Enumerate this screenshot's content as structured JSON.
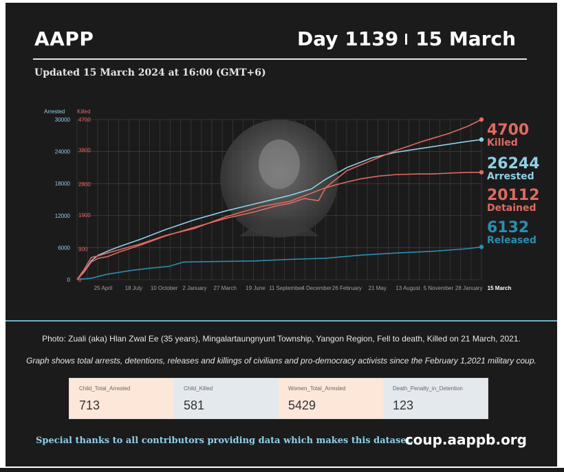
{
  "header": {
    "brand": "AAPP",
    "day": "Day 1139",
    "date": "15 March",
    "updated": "Updated 15 March 2024 at 16:00 (GMT+6)"
  },
  "colors": {
    "background": "#1c1b1c",
    "arrested": "#8fd1e6",
    "killed": "#e06a62",
    "detained": "#e06a62",
    "released": "#2b8fb0",
    "grid": "#4a4a4a"
  },
  "chart_data": {
    "type": "line",
    "title": "",
    "xlabel": "",
    "ylabel": "",
    "axis_left": {
      "label": "Arrested",
      "ticks": [
        0,
        6000,
        12000,
        18000,
        24000,
        30000
      ],
      "ylim": [
        0,
        30000
      ]
    },
    "axis_right": {
      "label": "Killed",
      "ticks": [
        0,
        900,
        1900,
        2800,
        3800,
        4700
      ],
      "ylim": [
        0,
        4700
      ]
    },
    "x_ticks": [
      "25 April",
      "18 July",
      "10 October",
      "2 January",
      "27 March",
      "19 June",
      "11 September",
      "4 December",
      "26 February",
      "21 May",
      "13 August",
      "5 November",
      "28 January",
      "15 March"
    ],
    "x_range": [
      0,
      1139
    ],
    "grid": true,
    "series": [
      {
        "name": "Arrested",
        "axis": "left",
        "x": [
          0,
          20,
          40,
          60,
          85,
          120,
          180,
          250,
          330,
          420,
          520,
          600,
          660,
          700,
          760,
          830,
          900,
          970,
          1050,
          1100,
          1139
        ],
        "values": [
          0,
          1500,
          3500,
          4600,
          5300,
          6200,
          7600,
          9400,
          11200,
          12900,
          14500,
          15800,
          17000,
          18800,
          21000,
          22800,
          23900,
          24600,
          25400,
          25900,
          26244
        ]
      },
      {
        "name": "Killed",
        "axis": "right",
        "x": [
          0,
          20,
          40,
          60,
          85,
          120,
          180,
          250,
          330,
          420,
          520,
          600,
          650,
          700,
          760,
          830,
          900,
          970,
          1050,
          1100,
          1139
        ],
        "values": [
          0,
          300,
          650,
          700,
          780,
          880,
          1050,
          1300,
          1500,
          1850,
          2150,
          2300,
          2500,
          2700,
          3200,
          3500,
          3800,
          4050,
          4300,
          4500,
          4700
        ]
      },
      {
        "name": "Detained",
        "axis": "left",
        "x": [
          0,
          20,
          40,
          60,
          85,
          120,
          180,
          250,
          330,
          420,
          500,
          560,
          600,
          640,
          680,
          700,
          720,
          760,
          800,
          850,
          900,
          960,
          1000,
          1060,
          1100,
          1139
        ],
        "values": [
          0,
          1400,
          3300,
          4000,
          4300,
          5200,
          6500,
          8200,
          9800,
          11500,
          12700,
          13800,
          14300,
          15200,
          14800,
          17200,
          17600,
          18300,
          18900,
          19400,
          19700,
          19800,
          19800,
          20000,
          20100,
          20112
        ]
      },
      {
        "name": "Released",
        "axis": "left",
        "x": [
          0,
          20,
          40,
          60,
          85,
          150,
          200,
          260,
          300,
          400,
          500,
          600,
          700,
          800,
          900,
          1000,
          1100,
          1139
        ],
        "values": [
          0,
          150,
          250,
          600,
          1000,
          1700,
          2100,
          2500,
          3300,
          3400,
          3500,
          3800,
          4000,
          4600,
          5000,
          5300,
          5800,
          6132
        ]
      }
    ],
    "end_labels": [
      {
        "value": "4700",
        "label": "Killed"
      },
      {
        "value": "26244",
        "label": "Arrested"
      },
      {
        "value": "20112",
        "label": "Detained"
      },
      {
        "value": "6132",
        "label": "Released"
      }
    ]
  },
  "captions": {
    "photo": "Photo: Zuali (aka) Hlan Zwal Ee (35 years), Mingalartaungnyunt Township, Yangon Region, Fell to death, Killed on 21 March, 2021.",
    "graph": "Graph shows total arrests, detentions, releases and killings of civilians and pro-democracy activists since the February 1,2021 military coup."
  },
  "stats": [
    {
      "label": "Child_Total_Arrested",
      "value": "713",
      "color": "#fde7d9"
    },
    {
      "label": "Child_Killed",
      "value": "581",
      "color": "#e4e9ee"
    },
    {
      "label": "Women_Total_Arrested",
      "value": "5429",
      "color": "#fde7d9"
    },
    {
      "label": "Death_Penalty_in_Detention",
      "value": "123",
      "color": "#e4e9ee"
    }
  ],
  "footer": {
    "thanks": "Special thanks to all contributors providing data which makes this dataset.",
    "site": "coup.aappb.org"
  }
}
